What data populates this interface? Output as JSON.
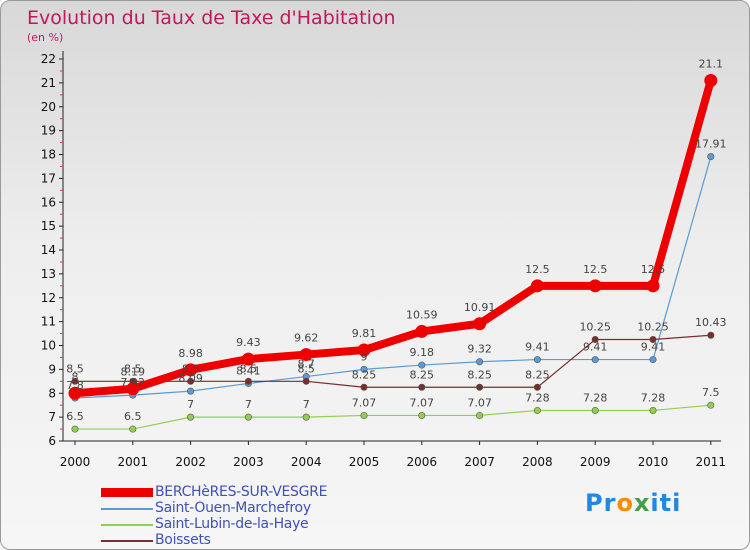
{
  "chart_data": {
    "type": "line",
    "title": "Evolution du Taux de Taxe d'Habitation",
    "subtitle": "(en %)",
    "x": [
      "2000",
      "2001",
      "2002",
      "2003",
      "2004",
      "2005",
      "2006",
      "2007",
      "2008",
      "2009",
      "2010",
      "2011"
    ],
    "ylim": [
      6,
      22
    ],
    "yticks": [
      6,
      7,
      8,
      9,
      10,
      11,
      12,
      13,
      14,
      15,
      16,
      17,
      18,
      19,
      20,
      21,
      22
    ],
    "grid": false,
    "legend_position": "bottom-left",
    "series": [
      {
        "name": "BERCHèRES-SUR-VESGRE",
        "color": "#ee0000",
        "width": 8,
        "values": [
          8,
          8.19,
          8.98,
          9.43,
          9.62,
          9.81,
          10.59,
          10.91,
          12.5,
          12.5,
          12.5,
          21.1
        ],
        "labels": [
          "8",
          "8.19",
          "8.98",
          "9.43",
          "9.62",
          "9.81",
          "10.59",
          "10.91",
          "12.5",
          "12.5",
          "12.5",
          "21.1"
        ]
      },
      {
        "name": "Saint-Ouen-Marchefroy",
        "color": "#5b9bd5",
        "width": 1.2,
        "values": [
          7.8,
          7.92,
          8.09,
          8.41,
          8.7,
          9.0,
          9.18,
          9.32,
          9.41,
          9.41,
          9.41,
          17.91
        ],
        "labels": [
          "7.8",
          "7.92",
          "8.09",
          "8.41",
          "8.7",
          "9",
          "9.18",
          "9.32",
          "9.41",
          "9.41",
          "9.41",
          "17.91"
        ]
      },
      {
        "name": "Saint-Lubin-de-la-Haye",
        "color": "#90d050",
        "width": 1.2,
        "values": [
          6.5,
          6.5,
          7,
          7,
          7,
          7.07,
          7.07,
          7.07,
          7.28,
          7.28,
          7.28,
          7.5
        ],
        "labels": [
          "6.5",
          "6.5",
          "7",
          "7",
          "7",
          "7.07",
          "7.07",
          "7.07",
          "7.28",
          "7.28",
          "7.28",
          "7.5"
        ]
      },
      {
        "name": "Boissets",
        "color": "#7b2c2c",
        "width": 1.2,
        "values": [
          8.5,
          8.5,
          8.5,
          8.5,
          8.5,
          8.25,
          8.25,
          8.25,
          8.25,
          10.25,
          10.25,
          10.43
        ],
        "labels": [
          "8.5",
          "8.5",
          "8.5",
          "8.5",
          "8.5",
          "8.25",
          "8.25",
          "8.25",
          "8.25",
          "10.25",
          "10.25",
          "10.43"
        ]
      }
    ]
  },
  "logo": {
    "p1": "Pr",
    "p2": "o",
    "p3": "x",
    "p4": "iti"
  }
}
